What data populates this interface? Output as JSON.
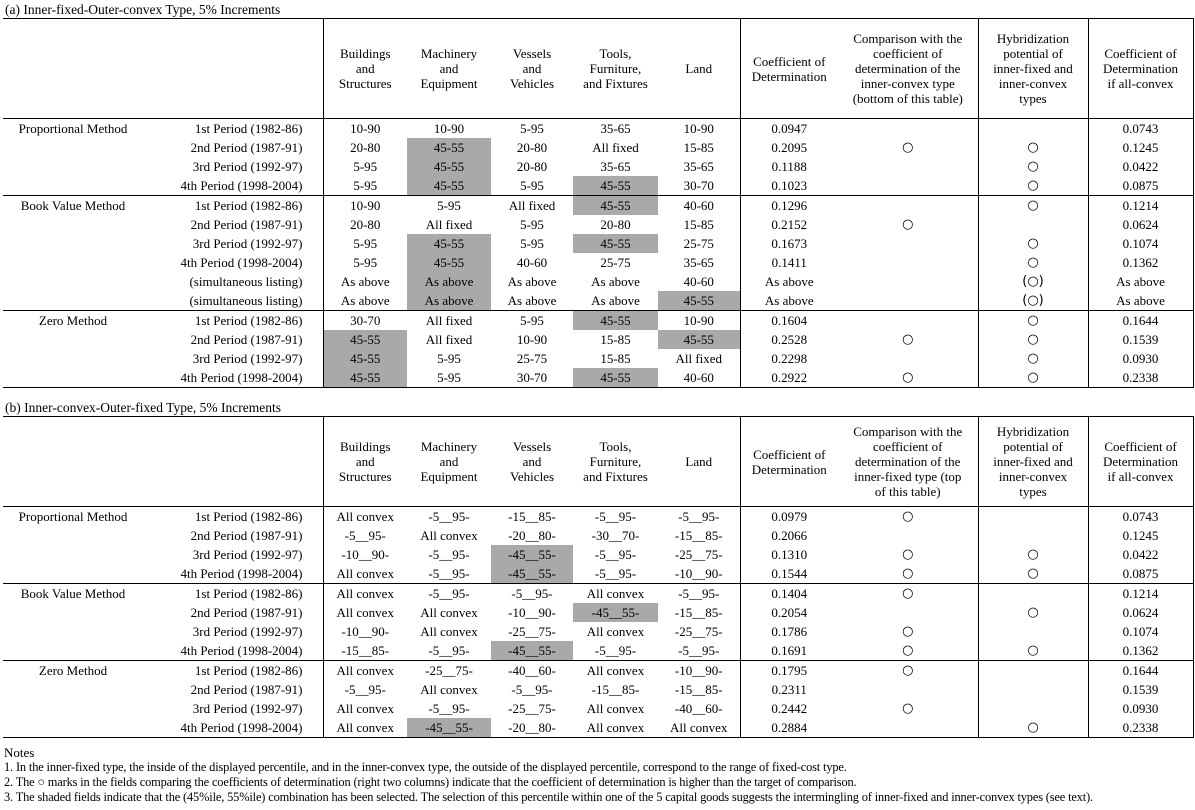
{
  "shade_color": "#a9a9a9",
  "notes": {
    "title": "Notes",
    "items": [
      "1. In the inner-fixed type, the inside of the displayed percentile, and in the inner-convex type, the outside of the displayed percentile, correspond to the range of fixed-cost type.",
      "2. The ○ marks in the fields comparing the coefficients of determination (right two columns) indicate that the coefficient of determination is higher than the target of comparison.",
      "3. The shaded fields indicate that the (45%ile, 55%ile) combination has been selected. The selection of this percentile within one of the 5 capital goods suggests the intermingling of inner-fixed and inner-convex types (see text)."
    ]
  },
  "tables": [
    {
      "title": "(a) Inner-fixed-Outer-convex Type, 5% Increments",
      "col_headers": [
        "Buildings\nand\nStructures",
        "Machinery\nand\nEquipment",
        "Vessels\nand\nVehicles",
        "Tools,\nFurniture,\nand Fixtures",
        "Land",
        "Coefficient of\nDetermination",
        "Comparison with the\ncoefficient of\ndetermination of the\ninner-convex type\n(bottom of this table)",
        "Hybridization\npotential of\ninner-fixed and\ninner-convex\ntypes",
        "Coefficient of\nDetermination\nif all-convex"
      ],
      "groups": [
        {
          "method": "Proportional Method",
          "rows": [
            {
              "period": "1st Period (1982-86)",
              "goods": [
                {
                  "v": "10-90"
                },
                {
                  "v": "10-90"
                },
                {
                  "v": "5-95"
                },
                {
                  "v": "35-65"
                },
                {
                  "v": "10-90"
                }
              ],
              "coef": "0.0947",
              "comparison": "",
              "hybridization": "",
              "coef_all_convex": "0.0743"
            },
            {
              "period": "2nd Period (1987-91)",
              "goods": [
                {
                  "v": "20-80"
                },
                {
                  "v": "45-55",
                  "shaded": true
                },
                {
                  "v": "20-80"
                },
                {
                  "v": "All fixed"
                },
                {
                  "v": "15-85"
                }
              ],
              "coef": "0.2095",
              "comparison": "○",
              "hybridization": "○",
              "coef_all_convex": "0.1245"
            },
            {
              "period": "3rd Period (1992-97)",
              "goods": [
                {
                  "v": "5-95"
                },
                {
                  "v": "45-55",
                  "shaded": true
                },
                {
                  "v": "20-80"
                },
                {
                  "v": "35-65"
                },
                {
                  "v": "35-65"
                }
              ],
              "coef": "0.1188",
              "comparison": "",
              "hybridization": "○",
              "coef_all_convex": "0.0422"
            },
            {
              "period": "4th Period (1998-2004)",
              "goods": [
                {
                  "v": "5-95"
                },
                {
                  "v": "45-55",
                  "shaded": true
                },
                {
                  "v": "5-95"
                },
                {
                  "v": "45-55",
                  "shaded": true
                },
                {
                  "v": "30-70"
                }
              ],
              "coef": "0.1023",
              "comparison": "",
              "hybridization": "○",
              "coef_all_convex": "0.0875"
            }
          ]
        },
        {
          "method": "Book Value Method",
          "rows": [
            {
              "period": "1st Period (1982-86)",
              "goods": [
                {
                  "v": "10-90"
                },
                {
                  "v": "5-95"
                },
                {
                  "v": "All fixed"
                },
                {
                  "v": "45-55",
                  "shaded": true
                },
                {
                  "v": "40-60"
                }
              ],
              "coef": "0.1296",
              "comparison": "",
              "hybridization": "○",
              "coef_all_convex": "0.1214"
            },
            {
              "period": "2nd Period (1987-91)",
              "goods": [
                {
                  "v": "20-80"
                },
                {
                  "v": "All fixed"
                },
                {
                  "v": "5-95"
                },
                {
                  "v": "20-80"
                },
                {
                  "v": "15-85"
                }
              ],
              "coef": "0.2152",
              "comparison": "○",
              "hybridization": "",
              "coef_all_convex": "0.0624"
            },
            {
              "period": "3rd Period (1992-97)",
              "goods": [
                {
                  "v": "5-95"
                },
                {
                  "v": "45-55",
                  "shaded": true
                },
                {
                  "v": "5-95"
                },
                {
                  "v": "45-55",
                  "shaded": true
                },
                {
                  "v": "25-75"
                }
              ],
              "coef": "0.1673",
              "comparison": "",
              "hybridization": "○",
              "coef_all_convex": "0.1074"
            },
            {
              "period": "4th Period (1998-2004)",
              "goods": [
                {
                  "v": "5-95"
                },
                {
                  "v": "45-55",
                  "shaded": true
                },
                {
                  "v": "40-60"
                },
                {
                  "v": "25-75"
                },
                {
                  "v": "35-65"
                }
              ],
              "coef": "0.1411",
              "comparison": "",
              "hybridization": "○",
              "coef_all_convex": "0.1362"
            },
            {
              "period": "(simultaneous listing)",
              "goods": [
                {
                  "v": "As above"
                },
                {
                  "v": "As above",
                  "shaded": true
                },
                {
                  "v": "As above"
                },
                {
                  "v": "As above"
                },
                {
                  "v": "40-60"
                }
              ],
              "coef": "As above",
              "comparison": "",
              "hybridization": "(○)",
              "coef_all_convex": "As above"
            },
            {
              "period": "(simultaneous listing)",
              "goods": [
                {
                  "v": "As above"
                },
                {
                  "v": "As above",
                  "shaded": true
                },
                {
                  "v": "As above"
                },
                {
                  "v": "As above"
                },
                {
                  "v": "45-55",
                  "shaded": true
                }
              ],
              "coef": "As above",
              "comparison": "",
              "hybridization": "(○)",
              "coef_all_convex": "As above"
            }
          ]
        },
        {
          "method": "Zero Method",
          "rows": [
            {
              "period": "1st Period (1982-86)",
              "goods": [
                {
                  "v": "30-70"
                },
                {
                  "v": "All fixed"
                },
                {
                  "v": "5-95"
                },
                {
                  "v": "45-55",
                  "shaded": true
                },
                {
                  "v": "10-90"
                }
              ],
              "coef": "0.1604",
              "comparison": "",
              "hybridization": "○",
              "coef_all_convex": "0.1644"
            },
            {
              "period": "2nd Period (1987-91)",
              "goods": [
                {
                  "v": "45-55",
                  "shaded": true
                },
                {
                  "v": "All fixed"
                },
                {
                  "v": "10-90"
                },
                {
                  "v": "15-85"
                },
                {
                  "v": "45-55",
                  "shaded": true
                }
              ],
              "coef": "0.2528",
              "comparison": "○",
              "hybridization": "○",
              "coef_all_convex": "0.1539"
            },
            {
              "period": "3rd Period (1992-97)",
              "goods": [
                {
                  "v": "45-55",
                  "shaded": true
                },
                {
                  "v": "5-95"
                },
                {
                  "v": "25-75"
                },
                {
                  "v": "15-85"
                },
                {
                  "v": "All fixed"
                }
              ],
              "coef": "0.2298",
              "comparison": "",
              "hybridization": "○",
              "coef_all_convex": "0.0930"
            },
            {
              "period": "4th Period (1998-2004)",
              "goods": [
                {
                  "v": "45-55",
                  "shaded": true
                },
                {
                  "v": "5-95"
                },
                {
                  "v": "30-70"
                },
                {
                  "v": "45-55",
                  "shaded": true
                },
                {
                  "v": "40-60"
                }
              ],
              "coef": "0.2922",
              "comparison": "○",
              "hybridization": "○",
              "coef_all_convex": "0.2338"
            }
          ]
        }
      ]
    },
    {
      "title": "(b) Inner-convex-Outer-fixed Type, 5% Increments",
      "col_headers": [
        "Buildings\nand\nStructures",
        "Machinery\nand\nEquipment",
        "Vessels\nand\nVehicles",
        "Tools,\nFurniture,\nand Fixtures",
        "Land",
        "Coefficient of\nDetermination",
        "Comparison with the\ncoefficient of\ndetermination of the\ninner-fixed type (top\nof this table)",
        "Hybridization\npotential of\ninner-fixed and\ninner-convex\ntypes",
        "Coefficient of\nDetermination\nif all-convex"
      ],
      "groups": [
        {
          "method": "Proportional Method",
          "rows": [
            {
              "period": "1st Period (1982-86)",
              "goods": [
                {
                  "v": "All convex"
                },
                {
                  "v": "-5__95-"
                },
                {
                  "v": "-15__85-"
                },
                {
                  "v": "-5__95-"
                },
                {
                  "v": "-5__95-"
                }
              ],
              "coef": "0.0979",
              "comparison": "○",
              "hybridization": "",
              "coef_all_convex": "0.0743"
            },
            {
              "period": "2nd Period (1987-91)",
              "goods": [
                {
                  "v": "-5__95-"
                },
                {
                  "v": "All convex"
                },
                {
                  "v": "-20__80-"
                },
                {
                  "v": "-30__70-"
                },
                {
                  "v": "-15__85-"
                }
              ],
              "coef": "0.2066",
              "comparison": "",
              "hybridization": "",
              "coef_all_convex": "0.1245"
            },
            {
              "period": "3rd Period (1992-97)",
              "goods": [
                {
                  "v": "-10__90-"
                },
                {
                  "v": "-5__95-"
                },
                {
                  "v": "-45__55-",
                  "shaded": true
                },
                {
                  "v": "-5__95-"
                },
                {
                  "v": "-25__75-"
                }
              ],
              "coef": "0.1310",
              "comparison": "○",
              "hybridization": "○",
              "coef_all_convex": "0.0422"
            },
            {
              "period": "4th Period (1998-2004)",
              "goods": [
                {
                  "v": "All convex"
                },
                {
                  "v": "-5__95-"
                },
                {
                  "v": "-45__55-",
                  "shaded": true
                },
                {
                  "v": "-5__95-"
                },
                {
                  "v": "-10__90-"
                }
              ],
              "coef": "0.1544",
              "comparison": "○",
              "hybridization": "○",
              "coef_all_convex": "0.0875"
            }
          ]
        },
        {
          "method": "Book Value Method",
          "rows": [
            {
              "period": "1st Period (1982-86)",
              "goods": [
                {
                  "v": "All convex"
                },
                {
                  "v": "-5__95-"
                },
                {
                  "v": "-5__95-"
                },
                {
                  "v": "All convex"
                },
                {
                  "v": "-5__95-"
                }
              ],
              "coef": "0.1404",
              "comparison": "○",
              "hybridization": "",
              "coef_all_convex": "0.1214"
            },
            {
              "period": "2nd Period (1987-91)",
              "goods": [
                {
                  "v": "All convex"
                },
                {
                  "v": "All convex"
                },
                {
                  "v": "-10__90-"
                },
                {
                  "v": "-45__55-",
                  "shaded": true
                },
                {
                  "v": "-15__85-"
                }
              ],
              "coef": "0.2054",
              "comparison": "",
              "hybridization": "○",
              "coef_all_convex": "0.0624"
            },
            {
              "period": "3rd Period (1992-97)",
              "goods": [
                {
                  "v": "-10__90-"
                },
                {
                  "v": "All convex"
                },
                {
                  "v": "-25__75-"
                },
                {
                  "v": "All convex"
                },
                {
                  "v": "-25__75-"
                }
              ],
              "coef": "0.1786",
              "comparison": "○",
              "hybridization": "",
              "coef_all_convex": "0.1074"
            },
            {
              "period": "4th Period (1998-2004)",
              "goods": [
                {
                  "v": "-15__85-"
                },
                {
                  "v": "-5__95-"
                },
                {
                  "v": "-45__55-",
                  "shaded": true
                },
                {
                  "v": "-5__95-"
                },
                {
                  "v": "-5__95-"
                }
              ],
              "coef": "0.1691",
              "comparison": "○",
              "hybridization": "○",
              "coef_all_convex": "0.1362"
            }
          ]
        },
        {
          "method": "Zero Method",
          "rows": [
            {
              "period": "1st Period (1982-86)",
              "goods": [
                {
                  "v": "All convex"
                },
                {
                  "v": "-25__75-"
                },
                {
                  "v": "-40__60-"
                },
                {
                  "v": "All convex"
                },
                {
                  "v": "-10__90-"
                }
              ],
              "coef": "0.1795",
              "comparison": "○",
              "hybridization": "",
              "coef_all_convex": "0.1644"
            },
            {
              "period": "2nd Period (1987-91)",
              "goods": [
                {
                  "v": "-5__95-"
                },
                {
                  "v": "All convex"
                },
                {
                  "v": "-5__95-"
                },
                {
                  "v": "-15__85-"
                },
                {
                  "v": "-15__85-"
                }
              ],
              "coef": "0.2311",
              "comparison": "",
              "hybridization": "",
              "coef_all_convex": "0.1539"
            },
            {
              "period": "3rd Period (1992-97)",
              "goods": [
                {
                  "v": "All convex"
                },
                {
                  "v": "-5__95-"
                },
                {
                  "v": "-25__75-"
                },
                {
                  "v": "All convex"
                },
                {
                  "v": "-40__60-"
                }
              ],
              "coef": "0.2442",
              "comparison": "○",
              "hybridization": "",
              "coef_all_convex": "0.0930"
            },
            {
              "period": "4th Period (1998-2004)",
              "goods": [
                {
                  "v": "All convex"
                },
                {
                  "v": "-45__55-",
                  "shaded": true
                },
                {
                  "v": "-20__80-"
                },
                {
                  "v": "All convex"
                },
                {
                  "v": "All convex"
                }
              ],
              "coef": "0.2884",
              "comparison": "",
              "hybridization": "○",
              "coef_all_convex": "0.2338"
            }
          ]
        }
      ]
    }
  ]
}
